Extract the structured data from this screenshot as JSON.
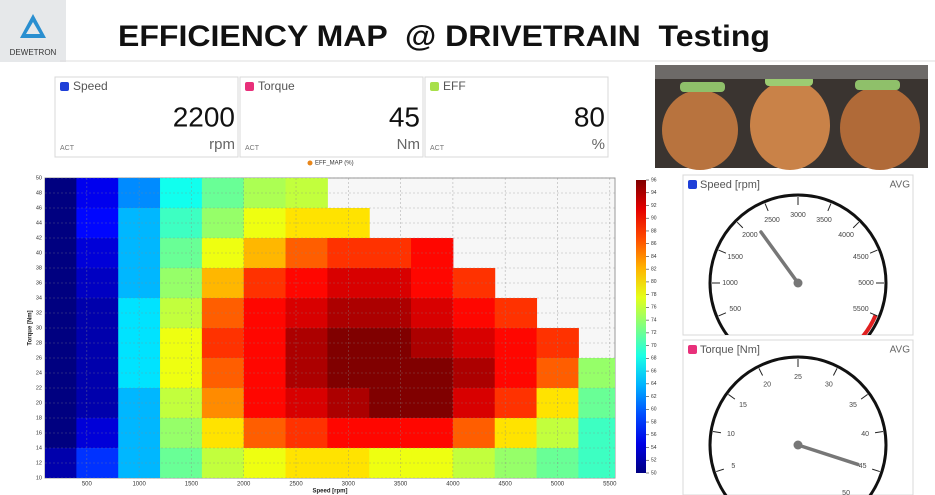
{
  "header": {
    "logo": "DEWETRON",
    "title": "EFFICIENCY MAP  @ DRIVETRAIN  Testing"
  },
  "meters": [
    {
      "label": "Speed",
      "color": "#1e3fd8",
      "value": 2200,
      "unit": "rpm",
      "mode": "ACT"
    },
    {
      "label": "Torque",
      "color": "#e8307a",
      "value": 45,
      "unit": "Nm",
      "mode": "ACT"
    },
    {
      "label": "EFF",
      "color": "#a8e04a",
      "value": 80,
      "unit": "%",
      "mode": "ACT"
    }
  ],
  "chart_data": [
    {
      "type": "heatmap",
      "legend": "EFF_MAP (%)",
      "legend_color": "#e8861a",
      "x_label": "Speed [rpm]",
      "y_label": "Torque [Nm]",
      "x": [
        200,
        600,
        1000,
        1400,
        1800,
        2200,
        2600,
        3000,
        3400,
        3800,
        4200,
        4600,
        5000,
        5400
      ],
      "y": [
        48,
        44,
        40,
        36,
        32,
        28,
        24,
        20,
        16,
        12
      ],
      "z": [
        [
          50,
          55,
          62,
          68,
          72,
          75,
          76,
          null,
          null,
          null,
          null,
          null,
          null,
          null
        ],
        [
          50,
          56,
          64,
          70,
          74,
          78,
          80,
          80,
          null,
          null,
          null,
          null,
          null,
          null
        ],
        [
          50,
          54,
          64,
          72,
          78,
          82,
          86,
          88,
          88,
          90,
          null,
          null,
          null,
          null
        ],
        [
          50,
          53,
          64,
          74,
          82,
          88,
          90,
          92,
          92,
          90,
          88,
          null,
          null,
          null
        ],
        [
          50,
          52,
          66,
          76,
          86,
          90,
          92,
          94,
          94,
          92,
          90,
          88,
          null,
          null
        ],
        [
          50,
          52,
          66,
          78,
          88,
          90,
          94,
          96,
          96,
          94,
          92,
          90,
          88,
          null
        ],
        [
          50,
          52,
          66,
          78,
          86,
          90,
          94,
          96,
          96,
          96,
          94,
          90,
          86,
          74
        ],
        [
          50,
          52,
          64,
          76,
          84,
          90,
          92,
          94,
          96,
          96,
          92,
          88,
          80,
          72
        ],
        [
          50,
          54,
          64,
          74,
          80,
          86,
          88,
          90,
          90,
          90,
          86,
          80,
          76,
          70
        ],
        [
          52,
          58,
          64,
          72,
          76,
          78,
          80,
          80,
          78,
          78,
          76,
          74,
          72,
          70
        ]
      ],
      "xlim": [
        100,
        5550
      ],
      "ylim": [
        10,
        50
      ],
      "xticks": [
        500,
        1000,
        1500,
        2000,
        2500,
        3000,
        3500,
        4000,
        4500,
        5000,
        5500
      ],
      "yticks": [
        10,
        12,
        14,
        16,
        18,
        20,
        22,
        24,
        26,
        28,
        30,
        32,
        34,
        36,
        38,
        40,
        42,
        44,
        46,
        48,
        50
      ],
      "zlim": [
        50,
        96
      ],
      "zticks": [
        50,
        52,
        54,
        56,
        58,
        60,
        62,
        64,
        66,
        68,
        70,
        72,
        74,
        76,
        78,
        80,
        82,
        84,
        86,
        88,
        90,
        92,
        94,
        96
      ],
      "grid": true
    },
    {
      "type": "gauge",
      "title": "Speed [rpm]",
      "stat": "AVG",
      "color": "#1e3fd8",
      "value": 2200,
      "range": [
        0,
        6000
      ],
      "ticks": [
        500,
        1000,
        1500,
        2000,
        2500,
        3000,
        3500,
        4000,
        4500,
        5000,
        5500
      ],
      "redzone": [
        5500,
        6000
      ]
    },
    {
      "type": "gauge",
      "title": "Torque [Nm]",
      "stat": "AVG",
      "color": "#e8307a",
      "value": 45,
      "range": [
        0,
        50
      ],
      "ticks": [
        5,
        10,
        15,
        20,
        25,
        30,
        35,
        40,
        45,
        50
      ]
    }
  ]
}
